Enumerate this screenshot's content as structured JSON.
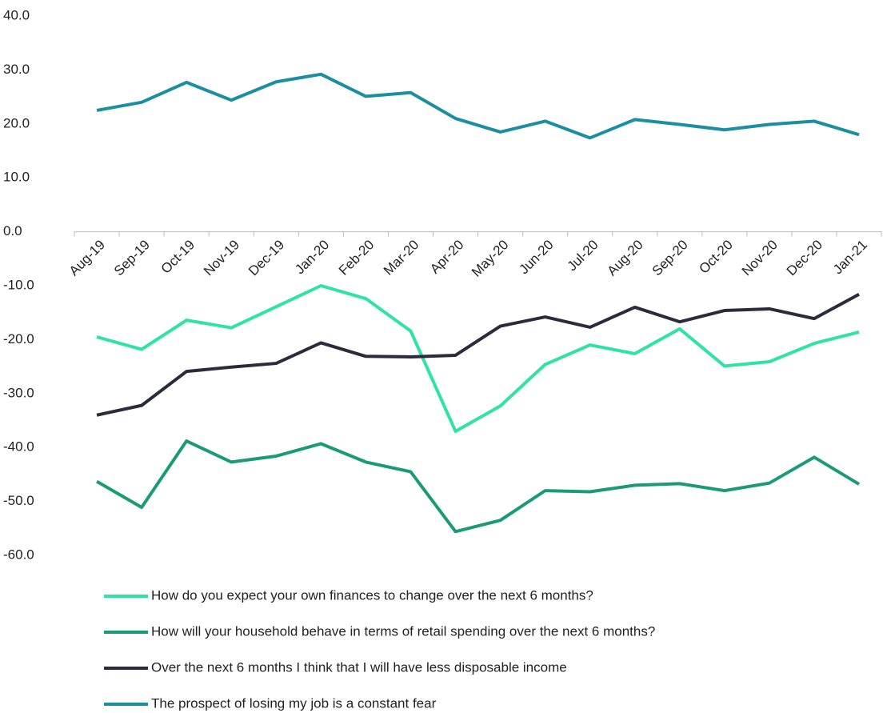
{
  "chart_data": {
    "type": "line",
    "categories": [
      "Aug-19",
      "Sep-19",
      "Oct-19",
      "Nov-19",
      "Dec-19",
      "Jan-20",
      "Feb-20",
      "Mar-20",
      "Apr-20",
      "May-20",
      "Jun-20",
      "Jul-20",
      "Aug-20",
      "Sep-20",
      "Oct-20",
      "Nov-20",
      "Dec-20",
      "Jan-21"
    ],
    "series": [
      {
        "name": "How do you expect your own finances to change over the next 6 months?",
        "color": "#2fe3a5",
        "values": [
          -19.5,
          -21.8,
          -16.4,
          -17.8,
          -13.9,
          -10.0,
          -12.4,
          -18.4,
          -37.0,
          -32.3,
          -24.6,
          -21.0,
          -22.6,
          -18.0,
          -24.9,
          -24.1,
          -20.7,
          -18.6
        ]
      },
      {
        "name": "How will your household behave in terms of retail spending over the next 6 months?",
        "color": "#1b9a78",
        "values": [
          -46.3,
          -51.1,
          -38.8,
          -42.7,
          -41.6,
          -39.3,
          -42.7,
          -44.5,
          -55.6,
          -53.5,
          -48.0,
          -48.2,
          -47.0,
          -46.7,
          -48.0,
          -46.6,
          -41.8,
          -46.8
        ]
      },
      {
        "name": "Over the next 6 months I think that I will have less disposable income",
        "color": "#2b2b3c",
        "values": [
          -34.0,
          -32.2,
          -25.9,
          -25.1,
          -24.4,
          -20.6,
          -23.1,
          -23.2,
          -22.9,
          -17.5,
          -15.8,
          -17.7,
          -14.0,
          -16.7,
          -14.6,
          -14.3,
          -16.1,
          -11.6
        ]
      },
      {
        "name": "The prospect of losing my job is a constant fear",
        "color": "#1b8ea0",
        "values": [
          22.5,
          24.0,
          27.7,
          24.4,
          27.8,
          29.2,
          25.1,
          25.8,
          21.0,
          18.5,
          20.5,
          17.4,
          20.8,
          19.9,
          18.9,
          19.9,
          20.5,
          18.0
        ]
      }
    ],
    "ylim": [
      -60,
      40
    ],
    "yticks": [
      {
        "value": 40,
        "label": "40.0"
      },
      {
        "value": 30,
        "label": "30.0"
      },
      {
        "value": 20,
        "label": "20.0"
      },
      {
        "value": 10,
        "label": "10.0"
      },
      {
        "value": 0,
        "label": "0.0"
      },
      {
        "value": -10,
        "label": "-10.0"
      },
      {
        "value": -20,
        "label": "-20.0"
      },
      {
        "value": -30,
        "label": "-30.0"
      },
      {
        "value": -40,
        "label": "-40.0"
      },
      {
        "value": -50,
        "label": "-50.0"
      },
      {
        "value": -60,
        "label": "-60.0"
      }
    ],
    "grid": false,
    "legend": "bottom"
  }
}
